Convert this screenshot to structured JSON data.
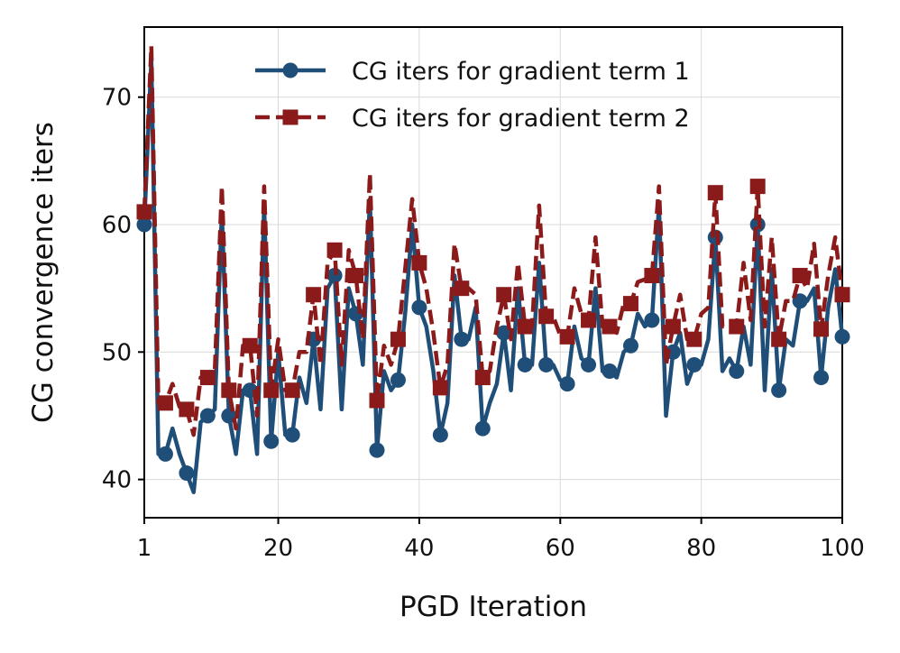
{
  "chart_data": {
    "type": "line",
    "title": "",
    "xlabel": "PGD Iteration",
    "ylabel": "CG convergence iters",
    "xlim": [
      1,
      100
    ],
    "ylim": [
      37,
      75.5
    ],
    "xticks": [
      1,
      20,
      40,
      60,
      80,
      100
    ],
    "yticks": [
      40,
      50,
      60,
      70
    ],
    "grid": true,
    "legend_position": "top-right",
    "series": [
      {
        "name": "CG iters for gradient term 1",
        "color": "#1f4e79",
        "line_style": "solid",
        "marker": "circle",
        "x": [
          1,
          2,
          3,
          4,
          5,
          6,
          7,
          8,
          9,
          10,
          11,
          12,
          13,
          14,
          15,
          16,
          17,
          18,
          19,
          20,
          21,
          22,
          23,
          24,
          25,
          26,
          27,
          28,
          29,
          30,
          31,
          32,
          33,
          34,
          35,
          36,
          37,
          38,
          39,
          40,
          41,
          42,
          43,
          44,
          45,
          46,
          47,
          48,
          49,
          50,
          51,
          52,
          53,
          54,
          55,
          56,
          57,
          58,
          59,
          60,
          61,
          62,
          63,
          64,
          65,
          66,
          67,
          68,
          69,
          70,
          71,
          72,
          73,
          74,
          75,
          76,
          77,
          78,
          79,
          80,
          81,
          82,
          83,
          84,
          85,
          86,
          87,
          88,
          89,
          90,
          91,
          92,
          93,
          94,
          95,
          96,
          97,
          98,
          99,
          100
        ],
        "values": [
          60,
          73,
          42,
          42,
          44,
          42,
          40.5,
          39,
          44.5,
          45,
          45.5,
          61,
          45,
          42,
          47,
          47,
          42,
          61.5,
          43,
          50,
          43.5,
          43.5,
          48,
          46,
          51,
          45.5,
          55,
          56,
          45.5,
          55,
          53,
          49,
          62,
          42.3,
          48.5,
          47,
          47.8,
          53,
          60,
          53.5,
          52,
          48.5,
          43.5,
          46,
          56,
          51,
          51,
          53.5,
          44,
          46,
          47.5,
          51.5,
          47,
          55,
          49,
          49,
          57,
          49,
          49,
          47.8,
          47.5,
          52,
          49.5,
          49,
          55,
          48.5,
          48.5,
          48,
          50,
          50.5,
          53,
          52,
          52.5,
          61.5,
          45,
          50,
          51.5,
          47.5,
          49,
          49,
          51,
          59,
          48.5,
          49.5,
          48.5,
          52,
          49,
          60,
          47,
          56.5,
          47,
          51,
          50.5,
          54,
          54,
          55,
          48,
          53.5,
          56.5,
          51.2
        ]
      },
      {
        "name": "CG iters for gradient term 2",
        "color": "#8b1a1a",
        "line_style": "dashed",
        "marker": "square",
        "x": [
          1,
          2,
          3,
          4,
          5,
          6,
          7,
          8,
          9,
          10,
          11,
          12,
          13,
          14,
          15,
          16,
          17,
          18,
          19,
          20,
          21,
          22,
          23,
          24,
          25,
          26,
          27,
          28,
          29,
          30,
          31,
          32,
          33,
          34,
          35,
          36,
          37,
          38,
          39,
          40,
          41,
          42,
          43,
          44,
          45,
          46,
          47,
          48,
          49,
          50,
          51,
          52,
          53,
          54,
          55,
          56,
          57,
          58,
          59,
          60,
          61,
          62,
          63,
          64,
          65,
          66,
          67,
          68,
          69,
          70,
          71,
          72,
          73,
          74,
          75,
          76,
          77,
          78,
          79,
          80,
          81,
          82,
          83,
          84,
          85,
          86,
          87,
          88,
          89,
          90,
          91,
          92,
          93,
          94,
          95,
          96,
          97,
          98,
          99,
          100
        ],
        "values": [
          61,
          74,
          46,
          46,
          47.5,
          45.7,
          45.5,
          43.5,
          48,
          48,
          48.5,
          63,
          47,
          44,
          50.5,
          50.5,
          45,
          63,
          47,
          51,
          47,
          47,
          50,
          50,
          54.5,
          49,
          57,
          58,
          49,
          58,
          56,
          51,
          64,
          46.2,
          50.5,
          49,
          51,
          56.5,
          62,
          57,
          55,
          51.5,
          47.2,
          49,
          58.5,
          55,
          55,
          54.5,
          48,
          48.5,
          52,
          54.5,
          51,
          57,
          52,
          52,
          61.5,
          52.8,
          52.8,
          51.3,
          51.2,
          55,
          53,
          52.5,
          59,
          52,
          52,
          51.5,
          53.8,
          53.8,
          55.5,
          55.7,
          56,
          63,
          49,
          52,
          54.5,
          51,
          51,
          53,
          53.5,
          62.5,
          52,
          52,
          52,
          57,
          52.5,
          63,
          52,
          59,
          51,
          54,
          54,
          56,
          55,
          58.5,
          51.8,
          56,
          59,
          54.5
        ]
      }
    ]
  }
}
